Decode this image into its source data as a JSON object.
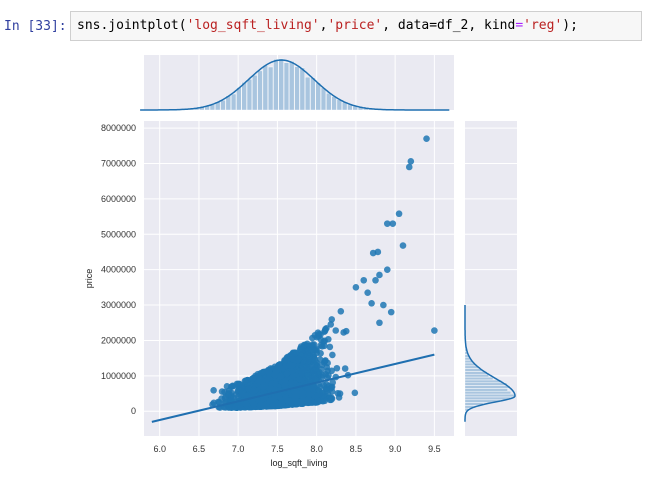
{
  "cell": {
    "prompt": "In [33]:",
    "code_tokens": [
      {
        "text": "sns.jointplot(",
        "cls": ""
      },
      {
        "text": "'log_sqft_living'",
        "cls": "tok-str"
      },
      {
        "text": ",",
        "cls": ""
      },
      {
        "text": "'price'",
        "cls": "tok-str"
      },
      {
        "text": ", data=df_2, ",
        "cls": ""
      },
      {
        "text": "kind",
        "cls": ""
      },
      {
        "text": "=",
        "cls": "tok-kw"
      },
      {
        "text": "'reg'",
        "cls": "tok-str"
      },
      {
        "text": ");",
        "cls": ""
      }
    ]
  },
  "colors": {
    "panel_bg": "#eaeaf2",
    "grid": "#ffffff",
    "scatter": "#1f77b4",
    "hist": "#a9c5df",
    "line": "#1f6fb0",
    "tick_text": "#333333"
  },
  "chart_data": {
    "type": "scatter",
    "kind": "reg",
    "xlabel": "log_sqft_living",
    "ylabel": "price",
    "xlim": [
      5.8,
      9.75
    ],
    "ylim": [
      -700000,
      8200000
    ],
    "x_ticks": [
      "6.0",
      "6.5",
      "7.0",
      "7.5",
      "8.0",
      "8.5",
      "9.0",
      "9.5"
    ],
    "y_ticks": [
      "0",
      "1000000",
      "2000000",
      "3000000",
      "4000000",
      "5000000",
      "6000000",
      "7000000",
      "8000000"
    ],
    "grid": true,
    "regression_line": {
      "x": [
        5.9,
        9.5
      ],
      "y": [
        -300000,
        1600000
      ]
    },
    "outliers": [
      {
        "x": 9.4,
        "y": 7700000
      },
      {
        "x": 9.2,
        "y": 7060000
      },
      {
        "x": 9.18,
        "y": 6900000
      },
      {
        "x": 9.05,
        "y": 5580000
      },
      {
        "x": 8.97,
        "y": 5300000
      },
      {
        "x": 8.9,
        "y": 5300000
      },
      {
        "x": 9.1,
        "y": 4680000
      },
      {
        "x": 8.78,
        "y": 4500000
      },
      {
        "x": 8.72,
        "y": 4470000
      },
      {
        "x": 8.9,
        "y": 4000000
      },
      {
        "x": 8.8,
        "y": 3850000
      },
      {
        "x": 8.75,
        "y": 3700000
      },
      {
        "x": 8.6,
        "y": 3700000
      },
      {
        "x": 8.5,
        "y": 3500000
      },
      {
        "x": 8.65,
        "y": 3350000
      },
      {
        "x": 8.85,
        "y": 3000000
      },
      {
        "x": 8.95,
        "y": 2800000
      },
      {
        "x": 9.5,
        "y": 2280000
      },
      {
        "x": 8.8,
        "y": 2500000
      },
      {
        "x": 8.7,
        "y": 3050000
      }
    ],
    "bulk": {
      "x_range": [
        5.9,
        9.0
      ],
      "price_at_x": [
        {
          "x": 5.9,
          "low": 150000,
          "high": 350000
        },
        {
          "x": 6.5,
          "low": 100000,
          "high": 550000
        },
        {
          "x": 7.0,
          "low": 100000,
          "high": 800000
        },
        {
          "x": 7.5,
          "low": 150000,
          "high": 1300000
        },
        {
          "x": 8.0,
          "low": 250000,
          "high": 2200000
        },
        {
          "x": 8.5,
          "low": 450000,
          "high": 3300000
        },
        {
          "x": 8.9,
          "low": 800000,
          "high": 3000000
        }
      ]
    },
    "x_distribution": {
      "mean": 7.55,
      "sd": 0.42
    },
    "y_distribution": {
      "mode": 430000,
      "sd_low": 170000,
      "sd_high": 500000
    }
  }
}
